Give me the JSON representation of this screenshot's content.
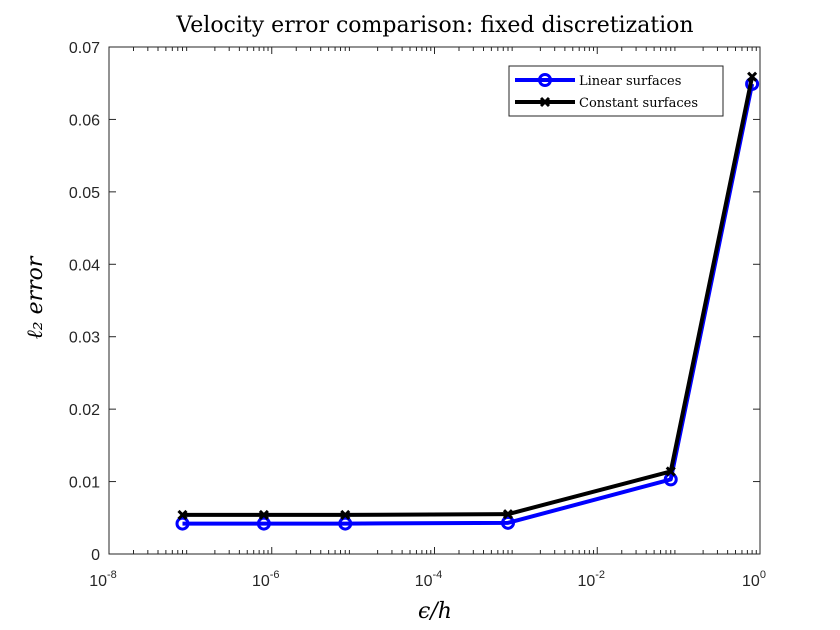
{
  "chart_data": {
    "type": "line",
    "title": "Velocity error comparison: fixed discretization",
    "xlabel": "ϵ/h",
    "ylabel": "ℓ₂ error",
    "xscale": "log",
    "xlim": [
      1e-08,
      1
    ],
    "ylim": [
      0,
      0.07
    ],
    "x_ticks": [
      {
        "base": "10",
        "exp": "-8",
        "value": 1e-08
      },
      {
        "base": "10",
        "exp": "-6",
        "value": 1e-06
      },
      {
        "base": "10",
        "exp": "-4",
        "value": 0.0001
      },
      {
        "base": "10",
        "exp": "-2",
        "value": 0.01
      },
      {
        "base": "10",
        "exp": "0",
        "value": 1
      }
    ],
    "y_ticks": [
      {
        "label": "0",
        "value": 0
      },
      {
        "label": "0.01",
        "value": 0.01
      },
      {
        "label": "0.02",
        "value": 0.02
      },
      {
        "label": "0.03",
        "value": 0.03
      },
      {
        "label": "0.04",
        "value": 0.04
      },
      {
        "label": "0.05",
        "value": 0.05
      },
      {
        "label": "0.06",
        "value": 0.06
      },
      {
        "label": "0.07",
        "value": 0.07
      }
    ],
    "x": [
      8e-08,
      8e-07,
      8e-06,
      0.0008,
      0.08,
      0.8
    ],
    "series": [
      {
        "name": "Linear surfaces",
        "color": "#0000ff",
        "marker": "circle",
        "values": [
          0.0042,
          0.0042,
          0.0042,
          0.0043,
          0.0103,
          0.0649
        ]
      },
      {
        "name": "Constant surfaces",
        "color": "#000000",
        "marker": "x",
        "values": [
          0.0054,
          0.0054,
          0.0054,
          0.0055,
          0.0114,
          0.0659
        ]
      }
    ],
    "legend": "top-right",
    "grid": false
  }
}
